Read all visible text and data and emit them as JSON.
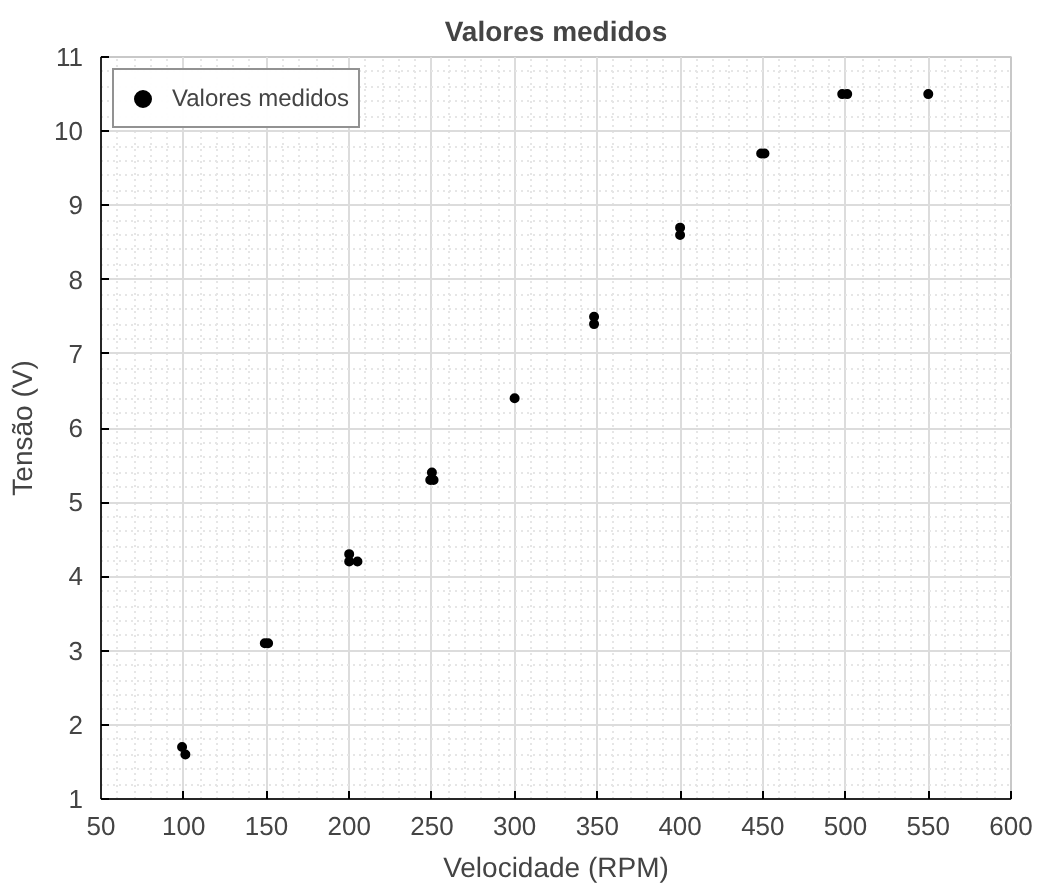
{
  "chart_data": {
    "type": "scatter",
    "title": "Valores medidos",
    "xlabel": "Velocidade (RPM)",
    "ylabel": "Tensão (V)",
    "x": [
      99,
      101,
      149,
      151,
      200,
      200,
      205,
      249,
      251,
      250,
      300,
      348,
      348,
      400,
      400,
      449,
      451,
      498,
      501,
      550
    ],
    "series": [
      {
        "name": "Valores medidos",
        "color": "#000000",
        "values": [
          1.7,
          1.6,
          3.1,
          3.1,
          4.3,
          4.2,
          4.2,
          5.3,
          5.3,
          5.4,
          6.4,
          7.4,
          7.5,
          8.6,
          8.7,
          9.7,
          9.7,
          10.5,
          10.5,
          10.5
        ]
      }
    ],
    "xlim": [
      50,
      600
    ],
    "xticks": [
      50,
      100,
      150,
      200,
      250,
      300,
      350,
      400,
      450,
      500,
      550,
      600
    ],
    "ylim": [
      1,
      11
    ],
    "yticks": [
      1,
      2,
      3,
      4,
      5,
      6,
      7,
      8,
      9,
      10,
      11
    ],
    "grid": true,
    "legend": "top left",
    "marker": "circle"
  }
}
